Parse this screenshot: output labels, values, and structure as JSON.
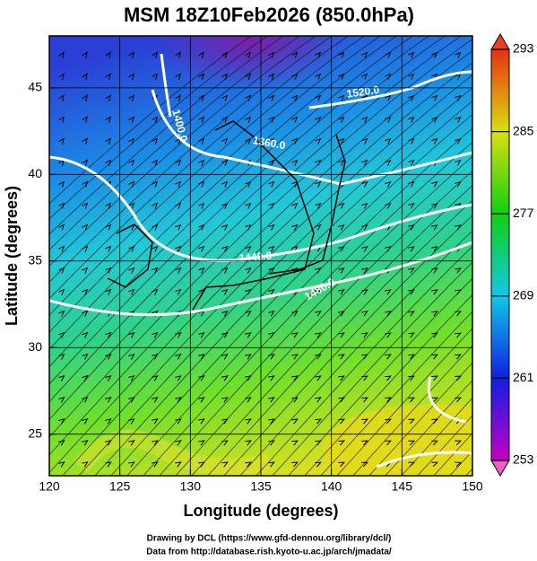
{
  "chart_data": {
    "type": "map",
    "title": "MSM 18Z10Feb2026 (850.0hPa)",
    "x_label": "Longitude (degrees)",
    "y_label": "Latitude  (degrees)",
    "xlim": [
      120,
      150
    ],
    "ylim": [
      22.6,
      48
    ],
    "xticks": [
      120,
      125,
      130,
      135,
      140,
      145,
      150
    ],
    "yticks": [
      25,
      30,
      35,
      40,
      45
    ],
    "grid": true,
    "colorbar": {
      "lim": [
        253,
        293
      ],
      "ticks": [
        253,
        261,
        269,
        277,
        285,
        293
      ]
    },
    "contour_labels": [
      "1520.0",
      "1400.0",
      "1360.0",
      "1440.0",
      "1480.0"
    ],
    "credits": [
      "Drawing by DCL (https://www.gfd-dennou.org/library/dcl/)",
      "Data from http://database.rish.kyoto-u.ac.jp/arch/jmadata/"
    ]
  }
}
